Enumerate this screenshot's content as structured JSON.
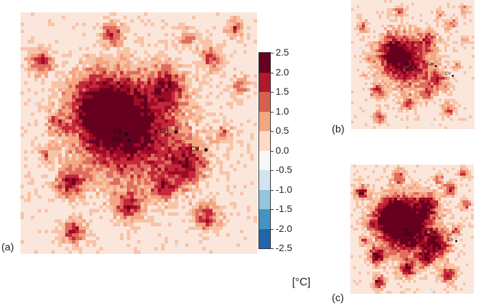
{
  "panels": [
    {
      "label": "(a)",
      "stations": [
        {
          "name": "EB"
        },
        {
          "name": "WB"
        },
        {
          "name": "CH"
        },
        {
          "name": "CV"
        }
      ]
    },
    {
      "label": "(b)",
      "stations": [
        {
          "name": "EB"
        },
        {
          "name": "WB"
        },
        {
          "name": "CH"
        },
        {
          "name": "CV"
        }
      ]
    },
    {
      "label": "(c)",
      "stations": [
        {
          "name": "EB"
        },
        {
          "name": "WB"
        },
        {
          "name": "CH"
        },
        {
          "name": "CV"
        }
      ]
    }
  ],
  "colorbar": {
    "ticks": [
      "2.5",
      "2.0",
      "1.5",
      "1.0",
      "0.5",
      "0.0",
      "-0.5",
      "-1.0",
      "-1.5",
      "-2.0",
      "-2.5"
    ],
    "unit": "[°C]",
    "colors": [
      "#67001f",
      "#9e0b25",
      "#c4283a",
      "#de6d5e",
      "#f7c4a8",
      "#fbe6dc",
      "#d3e2ee",
      "#92c5de",
      "#4393c3",
      "#2166ac",
      "#053061"
    ]
  }
}
